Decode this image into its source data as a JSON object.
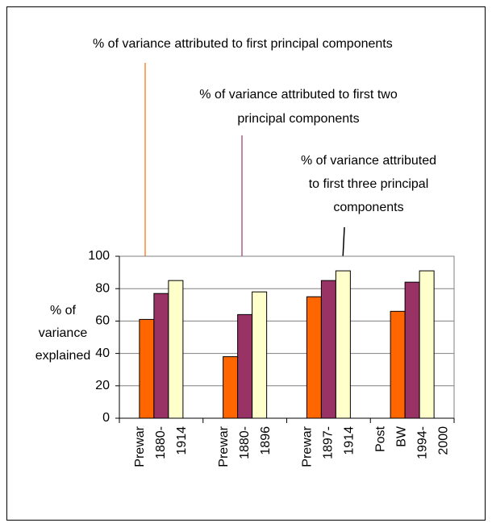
{
  "chart_data": {
    "type": "bar",
    "annotations": [
      [
        "% of variance attributed to first principal components"
      ],
      [
        "% of variance attributed to first two",
        "principal components"
      ],
      [
        "% of variance attributed",
        "to first three principal",
        "components"
      ]
    ],
    "ylabel": [
      "% of",
      "variance",
      "explained"
    ],
    "categories": [
      [
        "Prewar",
        "1880-",
        "1914"
      ],
      [
        "Prewar",
        "1880-",
        "1896"
      ],
      [
        "Prewar",
        "1897-",
        "1914"
      ],
      [
        "Post",
        "BW",
        "1994-",
        "2000"
      ]
    ],
    "series": [
      {
        "color": "#ff6600",
        "values": [
          61,
          38,
          75,
          66
        ]
      },
      {
        "color": "#993366",
        "values": [
          77,
          64,
          85,
          84
        ]
      },
      {
        "color": "#ffffcc",
        "values": [
          85,
          78,
          91,
          91
        ]
      }
    ],
    "ylim": [
      0,
      100
    ],
    "yticks": [
      0,
      20,
      40,
      60,
      80,
      100
    ],
    "grid": true
  }
}
